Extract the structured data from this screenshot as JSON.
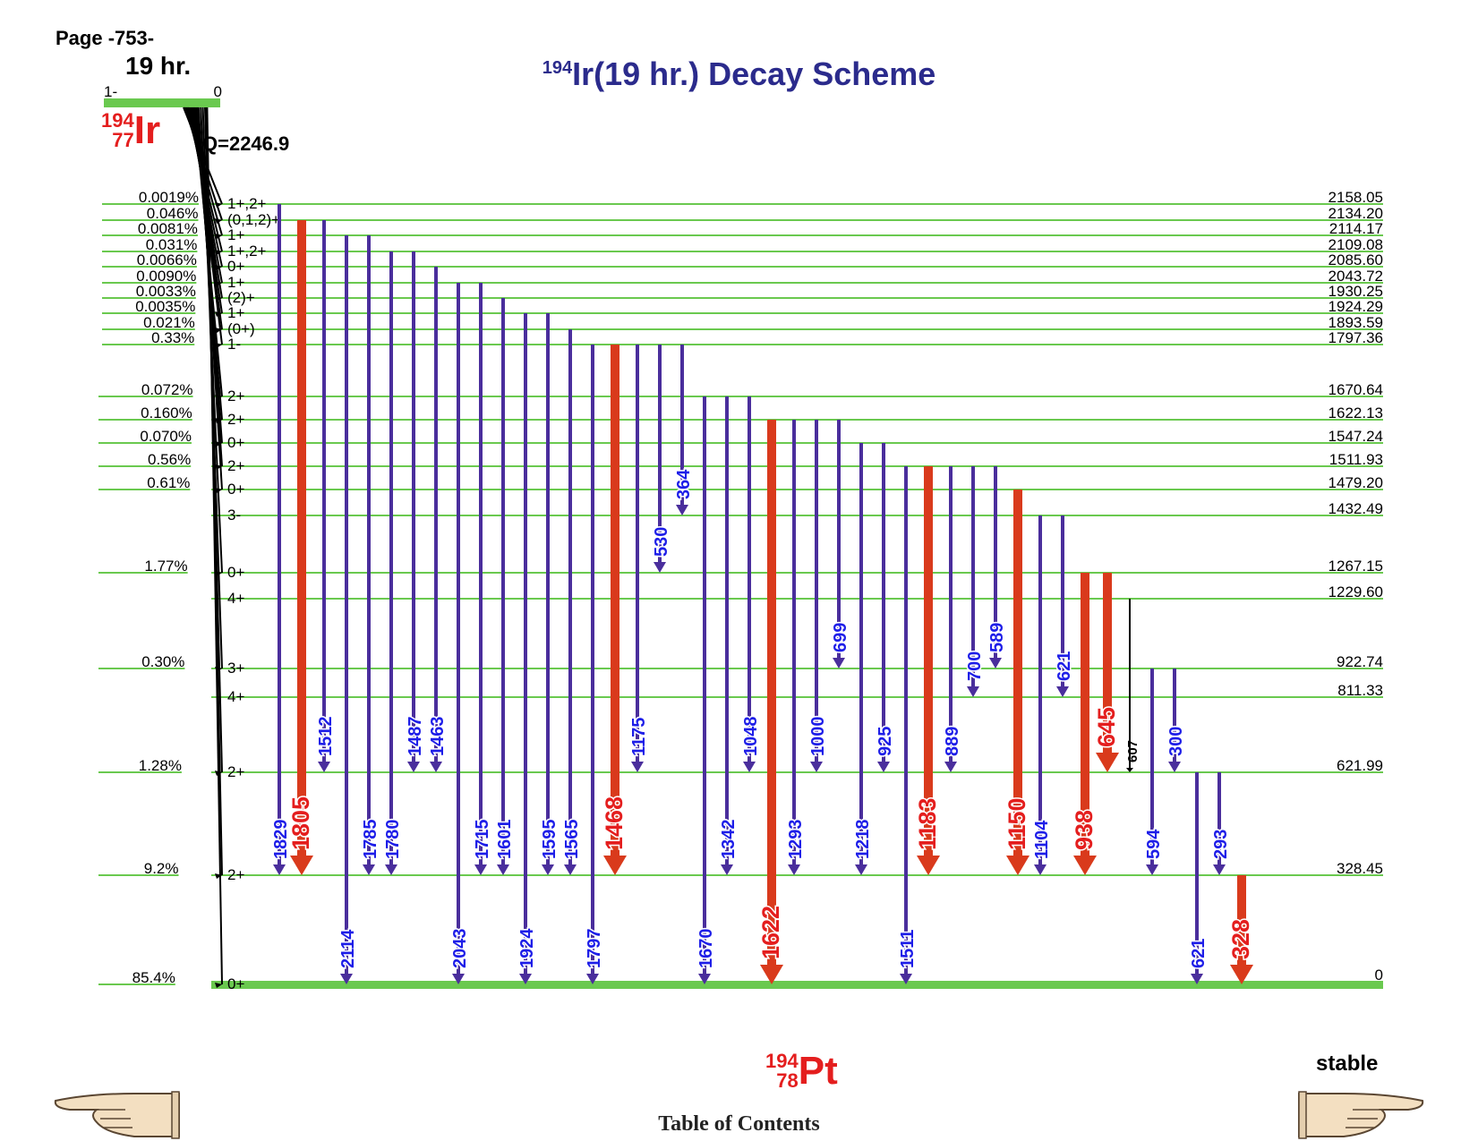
{
  "page_label": "Page -753-",
  "title": {
    "mass": "194",
    "rest": "Ir(19 hr.) Decay Scheme"
  },
  "parent": {
    "half_life": "19 hr.",
    "spin": "1-",
    "energy": "0",
    "A": "194",
    "Z": "77",
    "symbol": "Ir",
    "q_value": "Q=2246.9"
  },
  "daughter": {
    "A": "194",
    "Z": "78",
    "symbol": "Pt",
    "stability": "stable"
  },
  "footer": {
    "toc_label": "Table of Contents"
  },
  "icons": {
    "left": "pointing-hand-left-icon",
    "right": "pointing-hand-right-icon"
  },
  "colors": {
    "level": "#6ac94f",
    "gamma": "#4a2e9c",
    "gamma_label": "#1e1ee8",
    "strong_gamma": "#d93a1c",
    "strong_label": "#e41e1e",
    "title": "#2b2b8c",
    "feeding": "#000000"
  },
  "levels": [
    {
      "energy": "2158.05",
      "spin": "1+,2+",
      "feed": "0.0019%"
    },
    {
      "energy": "2134.20",
      "spin": "(0,1,2)+",
      "feed": "0.046%"
    },
    {
      "energy": "2114.17",
      "spin": "1+",
      "feed": "0.0081%"
    },
    {
      "energy": "2109.08",
      "spin": "1+,2+",
      "feed": "0.031%"
    },
    {
      "energy": "2085.60",
      "spin": "0+",
      "feed": "0.0066%"
    },
    {
      "energy": "2043.72",
      "spin": "1+",
      "feed": "0.0090%"
    },
    {
      "energy": "1930.25",
      "spin": "(2)+",
      "feed": "0.0033%"
    },
    {
      "energy": "1924.29",
      "spin": "1+",
      "feed": "0.0035%"
    },
    {
      "energy": "1893.59",
      "spin": "(0+)",
      "feed": "0.021%"
    },
    {
      "energy": "1797.36",
      "spin": "1-",
      "feed": "0.33%"
    },
    {
      "energy": "1670.64",
      "spin": "2+",
      "feed": "0.072%"
    },
    {
      "energy": "1622.13",
      "spin": "2+",
      "feed": "0.160%"
    },
    {
      "energy": "1547.24",
      "spin": "0+",
      "feed": "0.070%"
    },
    {
      "energy": "1511.93",
      "spin": "2+",
      "feed": "0.56%"
    },
    {
      "energy": "1479.20",
      "spin": "0+",
      "feed": "0.61%"
    },
    {
      "energy": "1432.49",
      "spin": "3-",
      "feed": ""
    },
    {
      "energy": "1267.15",
      "spin": "0+",
      "feed": "1.77%"
    },
    {
      "energy": "1229.60",
      "spin": "4+",
      "feed": ""
    },
    {
      "energy": "922.74",
      "spin": "3+",
      "feed": "0.30%"
    },
    {
      "energy": "811.33",
      "spin": "4+",
      "feed": ""
    },
    {
      "energy": "621.99",
      "spin": "2+",
      "feed": "1.28%"
    },
    {
      "energy": "328.45",
      "spin": "2+",
      "feed": "9.2%"
    },
    {
      "energy": "0",
      "spin": "0+",
      "feed": "85.4%"
    }
  ],
  "gammas": [
    {
      "label": "1829",
      "from": "2158.05",
      "to": "328.45",
      "strong": false
    },
    {
      "label": "1805",
      "from": "2134.20",
      "to": "328.45",
      "strong": true
    },
    {
      "label": "1512",
      "from": "2134.20",
      "to": "621.99",
      "strong": false
    },
    {
      "label": "2114",
      "from": "2114.17",
      "to": "0",
      "strong": false
    },
    {
      "label": "1785",
      "from": "2114.17",
      "to": "328.45",
      "strong": false
    },
    {
      "label": "1780",
      "from": "2109.08",
      "to": "328.45",
      "strong": false
    },
    {
      "label": "1487",
      "from": "2109.08",
      "to": "621.99",
      "strong": false
    },
    {
      "label": "1463",
      "from": "2085.60",
      "to": "621.99",
      "strong": false
    },
    {
      "label": "2043",
      "from": "2043.72",
      "to": "0",
      "strong": false
    },
    {
      "label": "1715",
      "from": "2043.72",
      "to": "328.45",
      "strong": false
    },
    {
      "label": "1601",
      "from": "1930.25",
      "to": "328.45",
      "strong": false
    },
    {
      "label": "1924",
      "from": "1924.29",
      "to": "0",
      "strong": false
    },
    {
      "label": "1595",
      "from": "1924.29",
      "to": "328.45",
      "strong": false
    },
    {
      "label": "1565",
      "from": "1893.59",
      "to": "328.45",
      "strong": false
    },
    {
      "label": "1797",
      "from": "1797.36",
      "to": "0",
      "strong": false
    },
    {
      "label": "1468",
      "from": "1797.36",
      "to": "328.45",
      "strong": true
    },
    {
      "label": "1175",
      "from": "1797.36",
      "to": "621.99",
      "strong": false
    },
    {
      "label": "530",
      "from": "1797.36",
      "to": "1267.15",
      "strong": false
    },
    {
      "label": "364",
      "from": "1797.36",
      "to": "1432.49",
      "strong": false
    },
    {
      "label": "1670",
      "from": "1670.64",
      "to": "0",
      "strong": false
    },
    {
      "label": "1342",
      "from": "1670.64",
      "to": "328.45",
      "strong": false
    },
    {
      "label": "1048",
      "from": "1670.64",
      "to": "621.99",
      "strong": false
    },
    {
      "label": "1622",
      "from": "1622.13",
      "to": "0",
      "strong": true
    },
    {
      "label": "1293",
      "from": "1622.13",
      "to": "328.45",
      "strong": false
    },
    {
      "label": "1000",
      "from": "1622.13",
      "to": "621.99",
      "strong": false
    },
    {
      "label": "699",
      "from": "1622.13",
      "to": "922.74",
      "strong": false
    },
    {
      "label": "1218",
      "from": "1547.24",
      "to": "328.45",
      "strong": false
    },
    {
      "label": "925",
      "from": "1547.24",
      "to": "621.99",
      "strong": false
    },
    {
      "label": "1511",
      "from": "1511.93",
      "to": "0",
      "strong": false
    },
    {
      "label": "1183",
      "from": "1511.93",
      "to": "328.45",
      "strong": true
    },
    {
      "label": "889",
      "from": "1511.93",
      "to": "621.99",
      "strong": false
    },
    {
      "label": "700",
      "from": "1511.93",
      "to": "811.33",
      "strong": false
    },
    {
      "label": "589",
      "from": "1511.93",
      "to": "922.74",
      "strong": false
    },
    {
      "label": "1150",
      "from": "1479.20",
      "to": "328.45",
      "strong": true
    },
    {
      "label": "1104",
      "from": "1432.49",
      "to": "328.45",
      "strong": false
    },
    {
      "label": "621",
      "from": "1432.49",
      "to": "811.33",
      "strong": false
    },
    {
      "label": "938",
      "from": "1267.15",
      "to": "328.45",
      "strong": true
    },
    {
      "label": "645",
      "from": "1267.15",
      "to": "621.99",
      "strong": true
    },
    {
      "label": "607",
      "from": "1229.60",
      "to": "621.99",
      "strong": false,
      "weak": true
    },
    {
      "label": "594",
      "from": "922.74",
      "to": "328.45",
      "strong": false
    },
    {
      "label": "300",
      "from": "922.74",
      "to": "621.99",
      "strong": false
    },
    {
      "label": "621",
      "from": "621.99",
      "to": "0",
      "strong": false
    },
    {
      "label": "293",
      "from": "621.99",
      "to": "328.45",
      "strong": false
    },
    {
      "label": "328",
      "from": "328.45",
      "to": "0",
      "strong": true
    }
  ]
}
